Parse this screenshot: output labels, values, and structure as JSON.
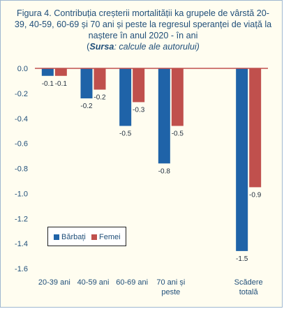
{
  "title": {
    "main": "Figura 4. Contribuția creșterii mortalității ka grupele de vârstă 20-39, 40-59, 60-69 și 70 ani și peste la regresul speranței de viață la naștere în anul 2020 - în ani",
    "source_open": "(",
    "source_word": "Sursa",
    "source_rest": ": calcule ale autorului)"
  },
  "chart_data": {
    "type": "bar",
    "categories": [
      [
        "20-39 ani"
      ],
      [
        "40-59 ani"
      ],
      [
        "60-69 ani"
      ],
      [
        "70 ani și",
        "peste"
      ],
      [],
      [
        "Scădere",
        "totală"
      ]
    ],
    "series": [
      {
        "name": "Bărbați",
        "color": "#1f63a8",
        "values": [
          -0.06,
          -0.24,
          -0.46,
          -0.76,
          null,
          -1.46
        ],
        "labels": [
          "-0.1",
          "-0.2",
          "-0.5",
          "-0.8",
          "",
          "-1.5"
        ]
      },
      {
        "name": "Femei",
        "color": "#c0504d",
        "values": [
          -0.06,
          -0.17,
          -0.27,
          -0.46,
          null,
          -0.95
        ],
        "labels": [
          "-0.1",
          "-0.2",
          "-0.3",
          "-0.5",
          "",
          "-0.9"
        ]
      }
    ],
    "y_ticks": [
      "0.0",
      "-0.2",
      "-0.4",
      "-0.6",
      "-0.8",
      "-1.0",
      "-1.2",
      "-1.4",
      "-1.6"
    ],
    "ylim": [
      -1.6,
      0
    ],
    "grid": false,
    "legend_position": "bottom-left",
    "colors": {
      "title": "#1f4e79",
      "axis_zero_line": "#c0504d",
      "background": "#fffdf0"
    }
  }
}
